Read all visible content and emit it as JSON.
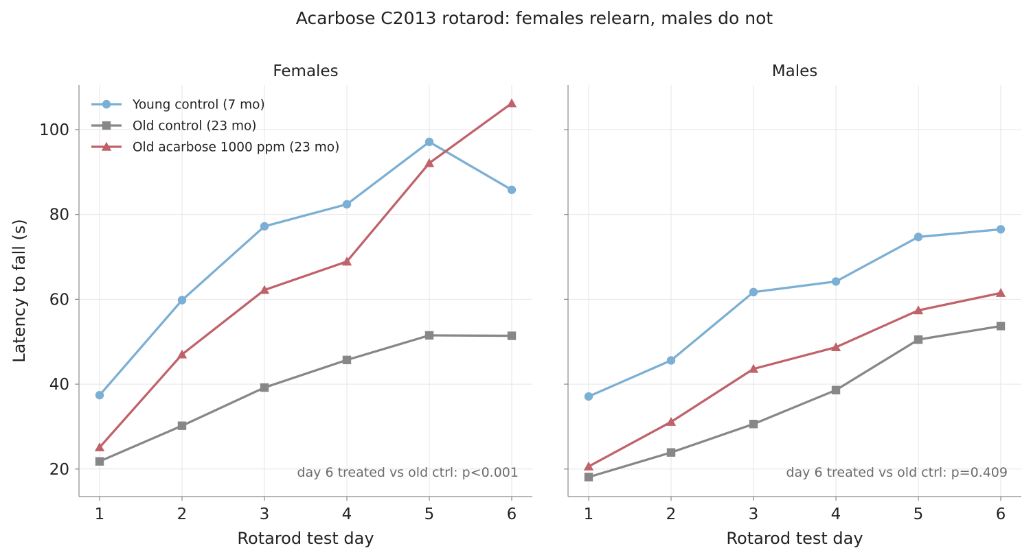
{
  "title": "Acarbose C2013 rotarod: females relearn, males do not",
  "chart_data": [
    {
      "type": "line",
      "title": "Females",
      "xlabel": "Rotarod test day",
      "ylabel": "Latency to fall (s)",
      "x": [
        1,
        2,
        3,
        4,
        5,
        6
      ],
      "xlim": [
        0.75,
        6.25
      ],
      "ylim": [
        13.5,
        110.5
      ],
      "yticks": [
        20,
        40,
        60,
        80,
        100
      ],
      "grid": true,
      "legend": "top-left",
      "annotation": "day 6 treated vs old ctrl: p<0.001",
      "series": [
        {
          "name": "Young control (7 mo)",
          "color": "#7bafd4",
          "marker": "circle",
          "values": [
            37.4,
            59.8,
            77.2,
            82.4,
            97.1,
            85.8
          ]
        },
        {
          "name": "Old control (23 mo)",
          "color": "#878787",
          "marker": "square",
          "values": [
            21.8,
            30.2,
            39.2,
            45.7,
            51.5,
            51.4
          ]
        },
        {
          "name": "Old acarbose 1000 ppm (23 mo)",
          "color": "#c0626a",
          "marker": "triangle",
          "values": [
            25.1,
            47.0,
            62.2,
            68.9,
            92.1,
            106.2
          ]
        }
      ]
    },
    {
      "type": "line",
      "title": "Males",
      "xlabel": "Rotarod test day",
      "ylabel": "",
      "x": [
        1,
        2,
        3,
        4,
        5,
        6
      ],
      "xlim": [
        0.75,
        6.25
      ],
      "ylim": [
        13.5,
        110.5
      ],
      "yticks": [
        20,
        40,
        60,
        80,
        100
      ],
      "grid": true,
      "annotation": "day 6 treated vs old ctrl: p=0.409",
      "series": [
        {
          "name": "Young control (7 mo)",
          "color": "#7bafd4",
          "marker": "circle",
          "values": [
            37.1,
            45.6,
            61.7,
            64.2,
            74.7,
            76.5
          ]
        },
        {
          "name": "Old control (23 mo)",
          "color": "#878787",
          "marker": "square",
          "values": [
            18.1,
            23.9,
            30.6,
            38.6,
            50.5,
            53.7
          ]
        },
        {
          "name": "Old acarbose 1000 ppm (23 mo)",
          "color": "#c0626a",
          "marker": "triangle",
          "values": [
            20.6,
            31.1,
            43.6,
            48.7,
            57.4,
            61.5
          ]
        }
      ]
    }
  ]
}
